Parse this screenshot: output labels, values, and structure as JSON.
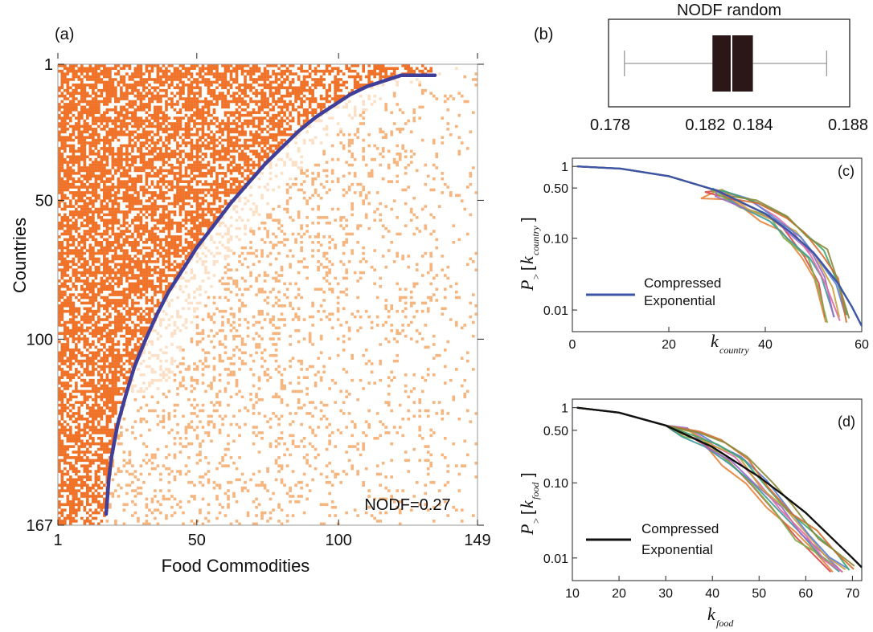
{
  "panels": {
    "a": {
      "label": "(a)"
    },
    "b": {
      "label": "(b)"
    },
    "c": {
      "label": "(c)"
    },
    "d": {
      "label": "(d)"
    }
  },
  "chart_data": [
    {
      "id": "a",
      "type": "heatmap",
      "xlabel": "Food Commodities",
      "ylabel": "Countries",
      "x_ticks": [
        1,
        50,
        100,
        149
      ],
      "y_ticks": [
        1,
        50,
        100,
        167
      ],
      "xlim": [
        1,
        149
      ],
      "ylim": [
        1,
        167
      ],
      "annotation": "NODF=0.27",
      "colors": {
        "dense": "#f07228",
        "light": "#f6b57e",
        "faint": "#fbe0c6"
      },
      "curve_color": "#3f3f9a",
      "boundary_curve": {
        "x": [
          18,
          19,
          20,
          22,
          25,
          28,
          32,
          36,
          40,
          45,
          50,
          56,
          62,
          68,
          74,
          80,
          86,
          92,
          98,
          104,
          110,
          116,
          122,
          128,
          134
        ],
        "y": [
          163,
          150,
          142,
          131,
          120,
          110,
          100,
          91,
          83,
          75,
          67,
          59,
          51,
          44,
          37,
          31,
          25,
          20,
          16,
          12,
          9,
          7,
          5,
          5,
          5
        ]
      }
    },
    {
      "id": "b",
      "type": "boxplot",
      "title": "NODF random",
      "x_ticks": [
        "0.178",
        "0.182",
        "0.184",
        "0.188"
      ],
      "tick_positions": [
        0.178,
        0.182,
        0.184,
        0.188
      ],
      "xlim": [
        0.178,
        0.188
      ],
      "box": {
        "whisker_low": 0.1786,
        "q1": 0.1823,
        "median": 0.1831,
        "q3": 0.184,
        "whisker_high": 0.1871
      },
      "colors": {
        "box": "#2b1718",
        "whisker": "#999999"
      }
    },
    {
      "id": "c",
      "type": "line",
      "xlabel_main": "k",
      "xlabel_sub": "country",
      "ylabel_main": "P",
      "ylabel_sub": ">",
      "ylabel_arg_main": "k",
      "ylabel_arg_sub": "country",
      "y_scale": "log",
      "x_ticks": [
        "0",
        "20",
        "40",
        "60"
      ],
      "x_tick_values": [
        0,
        20,
        40,
        60
      ],
      "y_ticks": [
        "1",
        "0.50",
        "0.10",
        "0.01"
      ],
      "y_tick_values": [
        1,
        0.5,
        0.1,
        0.01
      ],
      "xlim": [
        0,
        60
      ],
      "ylim": [
        0.005,
        1.3
      ],
      "legend": {
        "line1": "Compressed",
        "line2": "Exponential",
        "color": "#3c55a5"
      },
      "fit": {
        "x": [
          1,
          10,
          20,
          30,
          40,
          45,
          50,
          55,
          58,
          60
        ],
        "y": [
          1.0,
          0.93,
          0.73,
          0.46,
          0.22,
          0.125,
          0.063,
          0.024,
          0.011,
          0.006
        ]
      },
      "empirical_tail": {
        "x": [
          30,
          36,
          42,
          46,
          50,
          53,
          55
        ],
        "y": [
          0.43,
          0.3,
          0.19,
          0.12,
          0.06,
          0.025,
          0.008
        ]
      },
      "empirical_colors": [
        "#e6833a",
        "#d94848",
        "#7bb04a",
        "#3b9a9a",
        "#9b6bc7",
        "#e06aa5",
        "#c9a23a",
        "#5b7fd6",
        "#41a56b",
        "#d86a2e",
        "#8a8a3a"
      ]
    },
    {
      "id": "d",
      "type": "line",
      "xlabel_main": "k",
      "xlabel_sub": "food",
      "ylabel_main": "P",
      "ylabel_sub": ">",
      "ylabel_arg_main": "k",
      "ylabel_arg_sub": "food",
      "y_scale": "log",
      "x_ticks": [
        "10",
        "20",
        "30",
        "40",
        "50",
        "60",
        "70"
      ],
      "x_tick_values": [
        10,
        20,
        30,
        40,
        50,
        60,
        70
      ],
      "y_ticks": [
        "1",
        "0.50",
        "0.10",
        "0.01"
      ],
      "y_tick_values": [
        1,
        0.5,
        0.1,
        0.01
      ],
      "xlim": [
        10,
        72
      ],
      "ylim": [
        0.005,
        1.3
      ],
      "legend": {
        "line1": "Compressed",
        "line2": "Exponential",
        "color": "#111111"
      },
      "fit": {
        "x": [
          11,
          20,
          30,
          40,
          50,
          55,
          60,
          65,
          70,
          72
        ],
        "y": [
          1.0,
          0.86,
          0.58,
          0.3,
          0.12,
          0.07,
          0.04,
          0.02,
          0.01,
          0.0075
        ]
      },
      "empirical_tail": {
        "x": [
          35,
          40,
          45,
          50,
          55,
          60,
          64,
          68
        ],
        "y": [
          0.46,
          0.33,
          0.2,
          0.1,
          0.045,
          0.02,
          0.011,
          0.007
        ]
      },
      "empirical_colors": [
        "#e6833a",
        "#d94848",
        "#7bb04a",
        "#3b9a9a",
        "#9b6bc7",
        "#e06aa5",
        "#c9a23a",
        "#5b7fd6",
        "#41a56b",
        "#d86a2e",
        "#8a8a3a"
      ]
    }
  ]
}
